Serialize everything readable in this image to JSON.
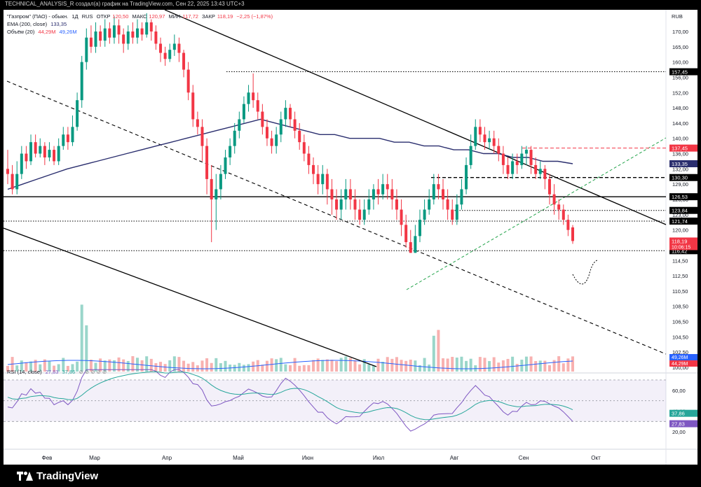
{
  "top_bar": {
    "text": "TECHNICAL_ANALYSIS_R создал(а) график на TradingView.com, Сен 22, 2025 13:43 UTC+3"
  },
  "legend": {
    "symbol": "\"Газпром\" (ПАО) - обыкн.",
    "interval": "1Д",
    "exchange": "RUS",
    "open_label": "ОТКР",
    "open": "120,50",
    "high_label": "МАКС",
    "high": "120,97",
    "low_label": "МИН",
    "low": "117,72",
    "close_label": "ЗАКР",
    "close": "118,19",
    "change": "−2,25 (−1,87%)",
    "ema_label": "EMA (200, close)",
    "ema_value": "133,35",
    "volume_label": "Объём (20)",
    "volume_value": "44,29M",
    "volume_ma": "49,26M",
    "rsi_label": "RSI (14, close)",
    "rsi_value": "27,83",
    "rsi_ma": "37,86"
  },
  "currency": "RUB",
  "brand": "TradingView",
  "colors": {
    "up": "#089981",
    "down": "#f23645",
    "ema": "#2a2e6e",
    "rsi": "#7e57c2",
    "rsi_ma": "#26a69a",
    "volume_ma": "#2962ff",
    "projection": "#22a34a",
    "resistance_red": "#f23645"
  },
  "chart_data": {
    "type": "candlestick",
    "price_axis": [
      "170,00",
      "165,00",
      "160,00",
      "156,00",
      "152,00",
      "148,00",
      "144,00",
      "140,00",
      "136,00",
      "132,00",
      "129,00",
      "126,00",
      "123,00",
      "120,00",
      "117,50",
      "114,50",
      "112,50",
      "110,50",
      "108,50",
      "106,50",
      "104,50",
      "102,50",
      "100,00"
    ],
    "time_axis": [
      "Фев",
      "Мар",
      "Апр",
      "Май",
      "Июн",
      "Июл",
      "Авг",
      "Сен",
      "Окт"
    ],
    "levels": [
      {
        "value": 157.45,
        "label": "157,45",
        "style": "dotted"
      },
      {
        "value": 137.45,
        "label": "137,45",
        "style": "dashed-red"
      },
      {
        "value": 130.3,
        "label": "130,30",
        "style": "dashed"
      },
      {
        "value": 126.53,
        "label": "126,53",
        "style": "solid"
      },
      {
        "value": 123.84,
        "label": "123,84",
        "style": "dotted"
      },
      {
        "value": 121.74,
        "label": "121,74",
        "style": "dotted"
      },
      {
        "value": 116.42,
        "label": "116,42",
        "style": "dotted"
      }
    ],
    "price_tags": [
      {
        "value": 133.35,
        "label": "133,35",
        "kind": "ema"
      },
      {
        "value": 118.19,
        "label": "118,19",
        "sub": "10:06:15",
        "kind": "last"
      }
    ],
    "volume_tags": [
      {
        "label": "49,26M",
        "kind": "ma"
      },
      {
        "label": "44,29M",
        "kind": "vol"
      }
    ],
    "rsi_axis": [
      "60,00",
      "40,00",
      "20,00"
    ],
    "rsi_tags": [
      {
        "label": "37,86",
        "kind": "ma"
      },
      {
        "label": "27,83",
        "kind": "rsi"
      }
    ],
    "candles": [
      [
        132,
        131,
        137,
        129
      ],
      [
        131,
        128,
        133,
        127
      ],
      [
        128,
        131,
        134,
        127
      ],
      [
        131,
        136,
        138,
        130
      ],
      [
        136,
        134,
        138,
        132
      ],
      [
        134,
        139,
        141,
        133
      ],
      [
        139,
        136,
        141,
        135
      ],
      [
        136,
        138,
        140,
        135
      ],
      [
        138,
        135,
        139,
        133
      ],
      [
        135,
        137,
        139,
        134
      ],
      [
        137,
        134,
        138,
        133
      ],
      [
        134,
        138,
        140,
        133
      ],
      [
        138,
        141,
        143,
        137
      ],
      [
        141,
        139,
        143,
        137
      ],
      [
        139,
        143,
        146,
        138
      ],
      [
        143,
        150,
        152,
        142
      ],
      [
        150,
        160,
        162,
        148
      ],
      [
        160,
        168,
        171,
        158
      ],
      [
        168,
        165,
        172,
        163
      ],
      [
        165,
        170,
        173,
        163
      ],
      [
        170,
        167,
        172,
        165
      ],
      [
        167,
        171,
        174,
        165
      ],
      [
        171,
        168,
        173,
        166
      ],
      [
        168,
        172,
        175,
        166
      ],
      [
        172,
        169,
        174,
        166
      ],
      [
        169,
        166,
        171,
        163
      ],
      [
        166,
        170,
        172,
        164
      ],
      [
        170,
        168,
        173,
        166
      ],
      [
        168,
        171,
        174,
        166
      ],
      [
        171,
        169,
        173,
        167
      ],
      [
        169,
        173,
        176,
        168
      ],
      [
        173,
        170,
        174,
        167
      ],
      [
        170,
        166,
        172,
        164
      ],
      [
        166,
        163,
        168,
        160
      ],
      [
        163,
        161,
        165,
        159
      ],
      [
        161,
        164,
        166,
        160
      ],
      [
        164,
        166,
        169,
        162
      ],
      [
        166,
        163,
        168,
        160
      ],
      [
        163,
        158,
        164,
        156
      ],
      [
        158,
        152,
        160,
        150
      ],
      [
        152,
        145,
        154,
        143
      ],
      [
        145,
        143,
        147,
        141
      ],
      [
        143,
        138,
        145,
        134
      ],
      [
        138,
        130,
        140,
        127
      ],
      [
        130,
        126,
        133,
        118
      ],
      [
        126,
        128,
        131,
        120
      ],
      [
        128,
        131,
        133,
        126
      ],
      [
        131,
        135,
        137,
        130
      ],
      [
        135,
        138,
        140,
        133
      ],
      [
        138,
        142,
        144,
        136
      ],
      [
        142,
        145,
        147,
        140
      ],
      [
        145,
        149,
        151,
        144
      ],
      [
        149,
        152,
        154,
        147
      ],
      [
        152,
        150,
        157,
        148
      ],
      [
        150,
        147,
        152,
        145
      ],
      [
        147,
        143,
        149,
        141
      ],
      [
        143,
        140,
        145,
        138
      ],
      [
        140,
        138,
        142,
        136
      ],
      [
        138,
        141,
        143,
        136
      ],
      [
        141,
        145,
        147,
        139
      ],
      [
        145,
        148,
        150,
        143
      ],
      [
        148,
        145,
        149,
        143
      ],
      [
        145,
        142,
        147,
        140
      ],
      [
        142,
        139,
        144,
        137
      ],
      [
        139,
        136,
        141,
        134
      ],
      [
        136,
        133,
        138,
        131
      ],
      [
        133,
        131,
        135,
        129
      ],
      [
        131,
        129,
        133,
        127
      ],
      [
        129,
        131,
        133,
        127
      ],
      [
        131,
        128,
        132,
        125
      ],
      [
        128,
        126,
        130,
        123
      ],
      [
        126,
        124,
        128,
        122
      ],
      [
        124,
        126,
        128,
        122
      ],
      [
        126,
        128,
        130,
        124
      ],
      [
        128,
        126,
        130,
        124
      ],
      [
        126,
        124,
        128,
        122
      ],
      [
        124,
        122,
        126,
        121
      ],
      [
        122,
        124,
        126,
        121
      ],
      [
        124,
        126,
        128,
        123
      ],
      [
        126,
        128,
        129,
        124
      ],
      [
        128,
        127,
        130,
        125
      ],
      [
        127,
        129,
        131,
        126
      ],
      [
        129,
        128,
        131,
        126
      ],
      [
        128,
        126,
        130,
        124
      ],
      [
        126,
        124,
        128,
        122
      ],
      [
        124,
        121,
        126,
        119
      ],
      [
        121,
        118,
        123,
        117
      ],
      [
        118,
        116,
        120,
        116
      ],
      [
        116,
        119,
        121,
        116
      ],
      [
        119,
        122,
        124,
        118
      ],
      [
        122,
        124,
        126,
        121
      ],
      [
        124,
        126,
        128,
        123
      ],
      [
        126,
        129,
        131,
        125
      ],
      [
        129,
        128,
        131,
        126
      ],
      [
        128,
        126,
        130,
        124
      ],
      [
        126,
        124,
        128,
        122
      ],
      [
        124,
        122,
        126,
        121
      ],
      [
        122,
        125,
        127,
        121
      ],
      [
        125,
        128,
        130,
        124
      ],
      [
        128,
        133,
        135,
        127
      ],
      [
        133,
        138,
        141,
        132
      ],
      [
        138,
        143,
        145,
        137
      ],
      [
        143,
        141,
        145,
        139
      ],
      [
        141,
        139,
        143,
        137
      ],
      [
        139,
        140,
        142,
        137
      ],
      [
        140,
        138,
        142,
        136
      ],
      [
        138,
        136,
        140,
        134
      ],
      [
        136,
        133,
        138,
        131
      ],
      [
        133,
        131,
        135,
        130
      ],
      [
        131,
        134,
        136,
        130
      ],
      [
        134,
        133,
        136,
        131
      ],
      [
        133,
        136,
        138,
        132
      ],
      [
        136,
        137,
        138,
        133
      ],
      [
        137,
        133,
        138,
        131
      ],
      [
        133,
        131,
        135,
        130
      ],
      [
        131,
        132,
        134,
        130
      ],
      [
        132,
        130,
        133,
        128
      ],
      [
        130,
        127,
        131,
        125
      ],
      [
        127,
        125,
        129,
        123
      ],
      [
        125,
        124,
        126,
        122
      ],
      [
        124,
        122,
        125,
        121
      ],
      [
        122,
        120,
        123,
        119
      ],
      [
        120.5,
        118.19,
        120.97,
        117.72
      ]
    ],
    "ema_200": [
      128,
      129,
      130,
      131,
      132,
      133,
      134,
      135,
      136,
      137,
      138,
      139,
      140,
      141,
      142,
      143,
      144,
      145,
      144,
      143,
      142,
      141,
      141,
      140,
      140,
      140,
      139,
      139,
      138,
      138,
      137,
      137,
      136,
      136,
      135,
      135,
      134,
      134,
      133.35
    ]
  }
}
